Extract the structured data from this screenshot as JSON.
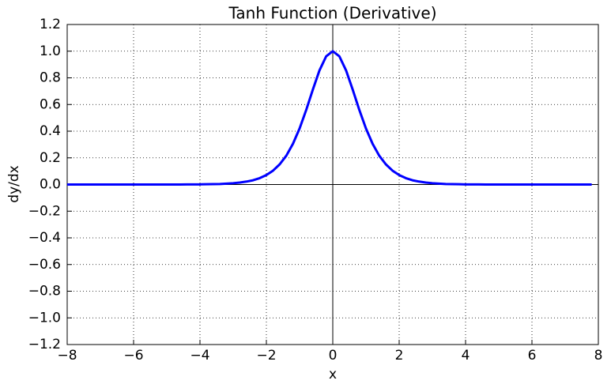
{
  "chart_data": {
    "type": "line",
    "title": "Tanh Function (Derivative)",
    "x_label": "x",
    "y_label": "dy/dx",
    "x": [
      -8,
      -7.8,
      -7.6,
      -7.4,
      -7.2,
      -7,
      -6.8,
      -6.6,
      -6.4,
      -6.2,
      -6,
      -5.8,
      -5.6,
      -5.4,
      -5.2,
      -5,
      -4.8,
      -4.6,
      -4.4,
      -4.2,
      -4,
      -3.8,
      -3.6,
      -3.4,
      -3.2,
      -3,
      -2.8,
      -2.6,
      -2.4,
      -2.2,
      -2,
      -1.8,
      -1.6,
      -1.4,
      -1.2,
      -1,
      -0.8,
      -0.6,
      -0.4,
      -0.2,
      0,
      0.2,
      0.4,
      0.6,
      0.8,
      1,
      1.2,
      1.4,
      1.6,
      1.8,
      2,
      2.2,
      2.4,
      2.6,
      2.8,
      3,
      3.2,
      3.4,
      3.6,
      3.8,
      4,
      4.2,
      4.4,
      4.6,
      4.8,
      5,
      5.2,
      5.4,
      5.6,
      5.8,
      6,
      6.2,
      6.4,
      6.6,
      6.8,
      7,
      7.2,
      7.4,
      7.6,
      7.8
    ],
    "series": [
      {
        "color": "#0000ff",
        "values": [
          0,
          0,
          0,
          0,
          0,
          0,
          0,
          0,
          0,
          0,
          0,
          0,
          0,
          0,
          0,
          0,
          0,
          0,
          0.001,
          0.001,
          0.001,
          0.002,
          0.003,
          0.004,
          0.007,
          0.01,
          0.015,
          0.022,
          0.032,
          0.048,
          0.071,
          0.104,
          0.151,
          0.216,
          0.305,
          0.42,
          0.559,
          0.712,
          0.856,
          0.961,
          1,
          0.961,
          0.856,
          0.712,
          0.559,
          0.42,
          0.305,
          0.216,
          0.151,
          0.104,
          0.071,
          0.048,
          0.032,
          0.022,
          0.015,
          0.01,
          0.007,
          0.004,
          0.003,
          0.002,
          0.001,
          0.001,
          0.001,
          0,
          0,
          0,
          0,
          0,
          0,
          0,
          0,
          0,
          0,
          0,
          0,
          0,
          0,
          0,
          0,
          0
        ]
      }
    ],
    "xlim": [
      -8,
      8
    ],
    "ylim": [
      -1.2,
      1.2
    ],
    "xticks": [
      {
        "value": -8,
        "label": "−8"
      },
      {
        "value": -6,
        "label": "−6"
      },
      {
        "value": -4,
        "label": "−4"
      },
      {
        "value": -2,
        "label": "−2"
      },
      0,
      2,
      4,
      6,
      8
    ],
    "yticks": [
      {
        "value": -1.2,
        "label": "−1.2"
      },
      {
        "value": -1,
        "label": "−1.0"
      },
      {
        "value": -0.8,
        "label": "−0.8"
      },
      {
        "value": -0.6,
        "label": "−0.6"
      },
      {
        "value": -0.4,
        "label": "−0.4"
      },
      {
        "value": -0.2,
        "label": "−0.2"
      },
      {
        "value": 0,
        "label": "0.0"
      },
      0.2,
      0.4,
      0.6,
      0.8,
      {
        "value": 1,
        "label": "1.0"
      },
      1.2
    ],
    "grid": true
  }
}
